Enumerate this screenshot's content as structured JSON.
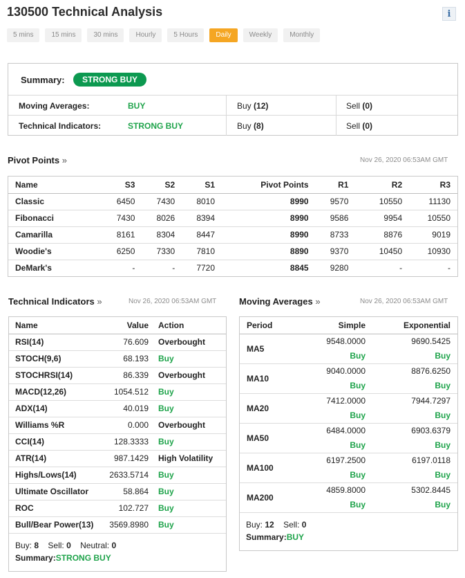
{
  "title": "130500 Technical Analysis",
  "info_icon": "i",
  "tabs": [
    "5 mins",
    "15 mins",
    "30 mins",
    "Hourly",
    "5 Hours",
    "Daily",
    "Weekly",
    "Monthly"
  ],
  "active_tab": "Daily",
  "summary": {
    "label": "Summary:",
    "badge": "STRONG BUY",
    "rows": [
      {
        "name": "Moving Averages:",
        "signal": "BUY",
        "buy_label": "Buy",
        "buy_count": "(12)",
        "sell_label": "Sell",
        "sell_count": "(0)"
      },
      {
        "name": "Technical Indicators:",
        "signal": "STRONG BUY",
        "buy_label": "Buy",
        "buy_count": "(8)",
        "sell_label": "Sell",
        "sell_count": "(0)"
      }
    ]
  },
  "pivot": {
    "title": "Pivot Points",
    "arrow": "»",
    "timestamp": "Nov 26, 2020 06:53AM GMT",
    "headers": [
      "Name",
      "S3",
      "S2",
      "S1",
      "Pivot Points",
      "R1",
      "R2",
      "R3"
    ],
    "rows": [
      [
        "Classic",
        "6450",
        "7430",
        "8010",
        "8990",
        "9570",
        "10550",
        "11130"
      ],
      [
        "Fibonacci",
        "7430",
        "8026",
        "8394",
        "8990",
        "9586",
        "9954",
        "10550"
      ],
      [
        "Camarilla",
        "8161",
        "8304",
        "8447",
        "8990",
        "8733",
        "8876",
        "9019"
      ],
      [
        "Woodie's",
        "6250",
        "7330",
        "7810",
        "8890",
        "9370",
        "10450",
        "10930"
      ],
      [
        "DeMark's",
        "-",
        "-",
        "7720",
        "8845",
        "9280",
        "-",
        "-"
      ]
    ]
  },
  "technical": {
    "title": "Technical Indicators",
    "arrow": "»",
    "timestamp": "Nov 26, 2020 06:53AM GMT",
    "headers": [
      "Name",
      "Value",
      "Action"
    ],
    "rows": [
      {
        "name": "RSI(14)",
        "value": "76.609",
        "action": "Overbought"
      },
      {
        "name": "STOCH(9,6)",
        "value": "68.193",
        "action": "Buy"
      },
      {
        "name": "STOCHRSI(14)",
        "value": "86.339",
        "action": "Overbought"
      },
      {
        "name": "MACD(12,26)",
        "value": "1054.512",
        "action": "Buy"
      },
      {
        "name": "ADX(14)",
        "value": "40.019",
        "action": "Buy"
      },
      {
        "name": "Williams %R",
        "value": "0.000",
        "action": "Overbought"
      },
      {
        "name": "CCI(14)",
        "value": "128.3333",
        "action": "Buy"
      },
      {
        "name": "ATR(14)",
        "value": "987.1429",
        "action": "High Volatility"
      },
      {
        "name": "Highs/Lows(14)",
        "value": "2633.5714",
        "action": "Buy"
      },
      {
        "name": "Ultimate Oscillator",
        "value": "58.864",
        "action": "Buy"
      },
      {
        "name": "ROC",
        "value": "102.727",
        "action": "Buy"
      },
      {
        "name": "Bull/Bear Power(13)",
        "value": "3569.8980",
        "action": "Buy"
      }
    ],
    "counts": {
      "buy_label": "Buy:",
      "buy": "8",
      "sell_label": "Sell:",
      "sell": "0",
      "neutral_label": "Neutral:",
      "neutral": "0"
    },
    "summary_label": "Summary:",
    "summary_value": "STRONG BUY"
  },
  "moving": {
    "title": "Moving Averages",
    "arrow": "»",
    "timestamp": "Nov 26, 2020 06:53AM GMT",
    "headers": [
      "Period",
      "Simple",
      "Exponential"
    ],
    "rows": [
      {
        "period": "MA5",
        "simple": "9548.0000",
        "simple_action": "Buy",
        "exp": "9690.5425",
        "exp_action": "Buy"
      },
      {
        "period": "MA10",
        "simple": "9040.0000",
        "simple_action": "Buy",
        "exp": "8876.6250",
        "exp_action": "Buy"
      },
      {
        "period": "MA20",
        "simple": "7412.0000",
        "simple_action": "Buy",
        "exp": "7944.7297",
        "exp_action": "Buy"
      },
      {
        "period": "MA50",
        "simple": "6484.0000",
        "simple_action": "Buy",
        "exp": "6903.6379",
        "exp_action": "Buy"
      },
      {
        "period": "MA100",
        "simple": "6197.2500",
        "simple_action": "Buy",
        "exp": "6197.0118",
        "exp_action": "Buy"
      },
      {
        "period": "MA200",
        "simple": "4859.8000",
        "simple_action": "Buy",
        "exp": "5302.8445",
        "exp_action": "Buy"
      }
    ],
    "counts": {
      "buy_label": "Buy:",
      "buy": "12",
      "sell_label": "Sell:",
      "sell": "0"
    },
    "summary_label": "Summary:",
    "summary_value": "BUY"
  },
  "colors": {
    "buy": "#1ea34a",
    "badge": "#0c9950",
    "active_tab": "#f5a623"
  }
}
